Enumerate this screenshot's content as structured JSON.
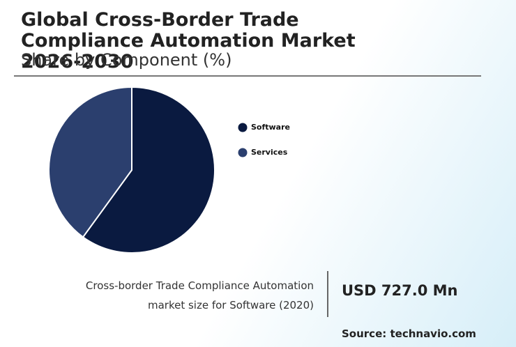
{
  "chart_data": {
    "type": "pie",
    "title": "Global Cross-Border Trade Compliance Automation Market 2026-2030",
    "subtitle": "Share by Component (%)",
    "categories": [
      "Software",
      "Services"
    ],
    "values": [
      60,
      40
    ],
    "colors": [
      "#0a1a40",
      "#2b3f6e"
    ],
    "annotation": {
      "text": "Cross-border Trade Compliance Automation market size for Software (2020)",
      "value": "USD 727.0 Mn"
    },
    "source": "Source: technavio.com"
  }
}
